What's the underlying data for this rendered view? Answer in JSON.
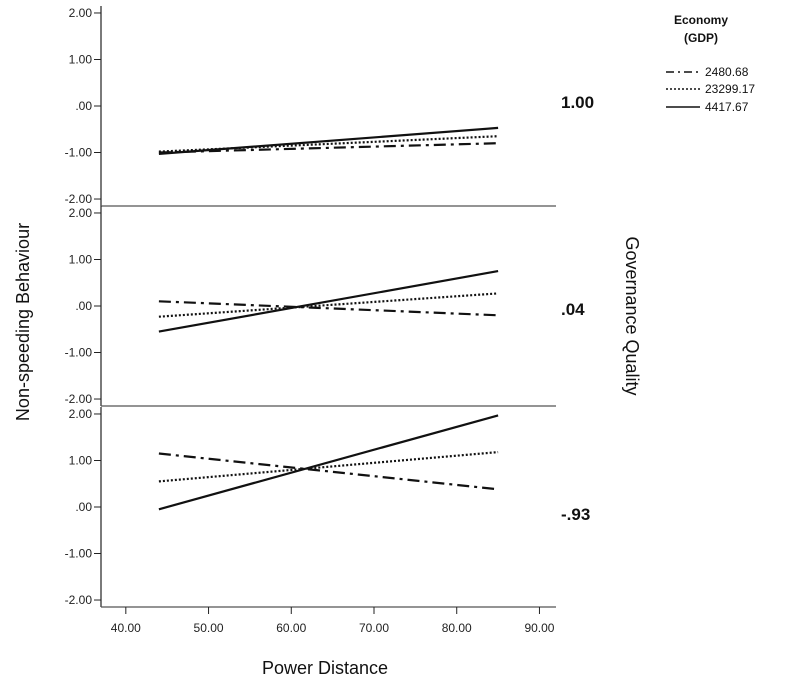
{
  "chart_data": {
    "type": "line",
    "xlabel": "Power Distance",
    "ylabel": "Non-speeding Behaviour",
    "facet_label": "Governance Quality",
    "xlim": [
      37,
      92
    ],
    "ylim": [
      -2.15,
      2.15
    ],
    "x_ticks": [
      "40.00",
      "50.00",
      "60.00",
      "70.00",
      "80.00",
      "90.00"
    ],
    "x_tick_values": [
      40,
      50,
      60,
      70,
      80,
      90
    ],
    "y_ticks": [
      "2.00",
      "1.00",
      ".00",
      "-1.00",
      "-2.00"
    ],
    "y_tick_values": [
      2,
      1,
      0,
      -1,
      -2
    ],
    "legend": {
      "title_line1": "Economy",
      "title_line2": "(GDP)",
      "placement": "top-right"
    },
    "series_styles": [
      {
        "name": "2480.68",
        "dash": "dashdot"
      },
      {
        "name": "23299.17",
        "dash": "dotted"
      },
      {
        "name": "4417.67",
        "dash": "solid"
      }
    ],
    "panels": [
      {
        "label": "1.00",
        "series": [
          {
            "name": "2480.68",
            "x": [
              44,
              85
            ],
            "y": [
              -1.0,
              -0.8
            ]
          },
          {
            "name": "23299.17",
            "x": [
              44,
              85
            ],
            "y": [
              -0.98,
              -0.65
            ]
          },
          {
            "name": "4417.67",
            "x": [
              44,
              85
            ],
            "y": [
              -1.03,
              -0.47
            ]
          }
        ]
      },
      {
        "label": ".04",
        "series": [
          {
            "name": "2480.68",
            "x": [
              44,
              85
            ],
            "y": [
              0.1,
              -0.2
            ]
          },
          {
            "name": "23299.17",
            "x": [
              44,
              85
            ],
            "y": [
              -0.23,
              0.27
            ]
          },
          {
            "name": "4417.67",
            "x": [
              44,
              85
            ],
            "y": [
              -0.55,
              0.75
            ]
          }
        ]
      },
      {
        "label": "-.93",
        "series": [
          {
            "name": "2480.68",
            "x": [
              44,
              85
            ],
            "y": [
              1.15,
              0.38
            ]
          },
          {
            "name": "23299.17",
            "x": [
              44,
              85
            ],
            "y": [
              0.55,
              1.18
            ]
          },
          {
            "name": "4417.67",
            "x": [
              44,
              85
            ],
            "y": [
              -0.05,
              1.97
            ]
          }
        ]
      }
    ]
  }
}
